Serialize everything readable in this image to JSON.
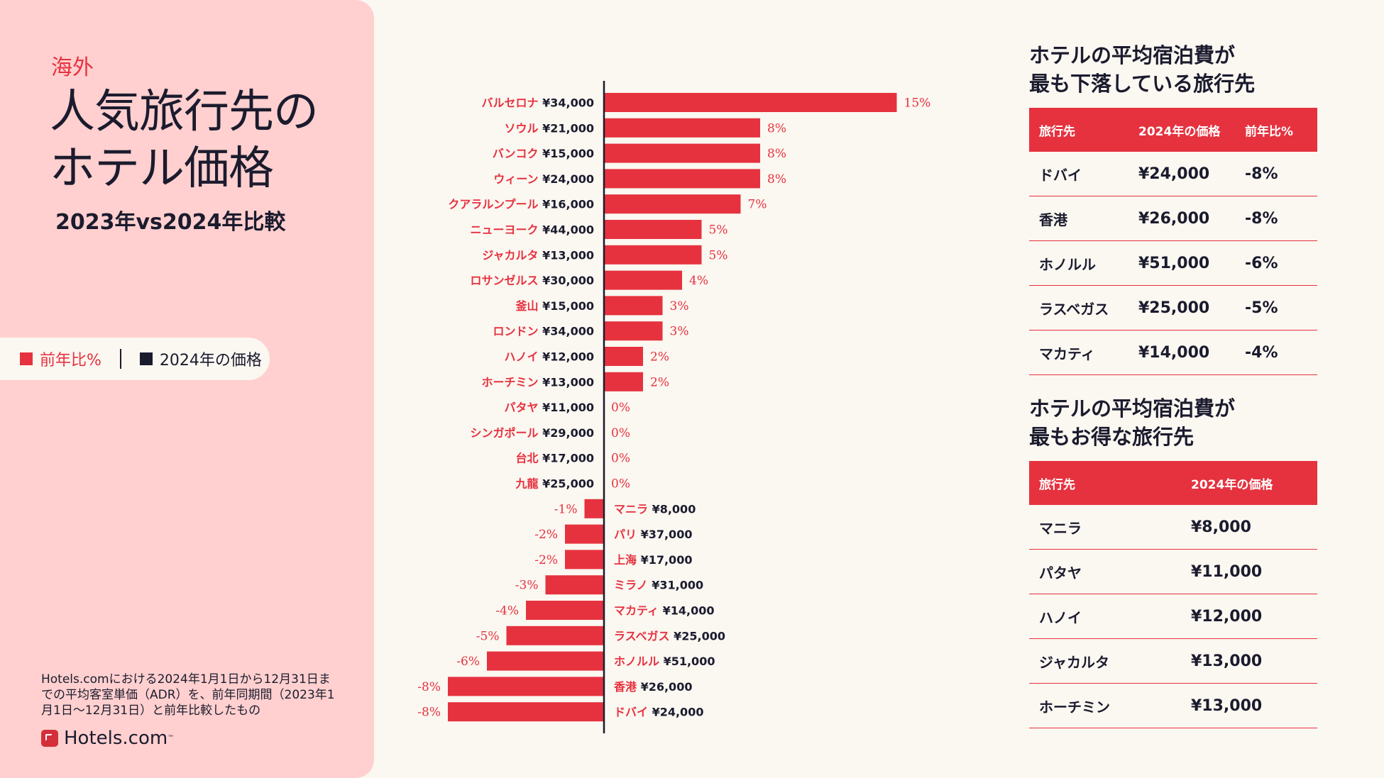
{
  "sidebar": {
    "kicker": "海外",
    "title_line1": "人気旅行先の",
    "title_line2": "ホテル価格",
    "subtitle": "2023年vs2024年比較",
    "legend": {
      "yoy": "前年比%",
      "price": "2024年の価格"
    },
    "note": "Hotels.comにおける2024年1月1日から12月31日までの平均客室単価（ADR）を、前年同期間（2023年1月1日～12月31日）と前年比較したもの",
    "brand": "Hotels.com",
    "brand_tm": "™"
  },
  "chart_data": {
    "type": "bar",
    "orientation": "horizontal",
    "colors": {
      "bar": "#e6323f",
      "label": "#e6323f",
      "price": "#1b1b2e",
      "axis": "#1b1b2e"
    },
    "items": [
      {
        "city": "バルセロナ",
        "price": "¥34,000",
        "change": 15,
        "label": "15%"
      },
      {
        "city": "ソウル",
        "price": "¥21,000",
        "change": 8,
        "label": "8%"
      },
      {
        "city": "バンコク",
        "price": "¥15,000",
        "change": 8,
        "label": "8%"
      },
      {
        "city": "ウィーン",
        "price": "¥24,000",
        "change": 8,
        "label": "8%"
      },
      {
        "city": "クアラルンプール",
        "price": "¥16,000",
        "change": 7,
        "label": "7%"
      },
      {
        "city": "ニューヨーク",
        "price": "¥44,000",
        "change": 5,
        "label": "5%"
      },
      {
        "city": "ジャカルタ",
        "price": "¥13,000",
        "change": 5,
        "label": "5%"
      },
      {
        "city": "ロサンゼルス",
        "price": "¥30,000",
        "change": 4,
        "label": "4%"
      },
      {
        "city": "釜山",
        "price": "¥15,000",
        "change": 3,
        "label": "3%"
      },
      {
        "city": "ロンドン",
        "price": "¥34,000",
        "change": 3,
        "label": "3%"
      },
      {
        "city": "ハノイ",
        "price": "¥12,000",
        "change": 2,
        "label": "2%"
      },
      {
        "city": "ホーチミン",
        "price": "¥13,000",
        "change": 2,
        "label": "2%"
      },
      {
        "city": "パタヤ",
        "price": "¥11,000",
        "change": 0,
        "label": "0%"
      },
      {
        "city": "シンガポール",
        "price": "¥29,000",
        "change": 0,
        "label": "0%"
      },
      {
        "city": "台北",
        "price": "¥17,000",
        "change": 0,
        "label": "0%"
      },
      {
        "city": "九龍",
        "price": "¥25,000",
        "change": 0,
        "label": "0%"
      },
      {
        "city": "マニラ",
        "price": "¥8,000",
        "change": -1,
        "label": "-1%"
      },
      {
        "city": "パリ",
        "price": "¥37,000",
        "change": -2,
        "label": "-2%"
      },
      {
        "city": "上海",
        "price": "¥17,000",
        "change": -2,
        "label": "-2%"
      },
      {
        "city": "ミラノ",
        "price": "¥31,000",
        "change": -3,
        "label": "-3%"
      },
      {
        "city": "マカティ",
        "price": "¥14,000",
        "change": -4,
        "label": "-4%"
      },
      {
        "city": "ラスベガス",
        "price": "¥25,000",
        "change": -5,
        "label": "-5%"
      },
      {
        "city": "ホノルル",
        "price": "¥51,000",
        "change": -6,
        "label": "-6%"
      },
      {
        "city": "香港",
        "price": "¥26,000",
        "change": -8,
        "label": "-8%"
      },
      {
        "city": "ドバイ",
        "price": "¥24,000",
        "change": -8,
        "label": "-8%"
      }
    ]
  },
  "table1": {
    "title_line1": "ホテルの平均宿泊費が",
    "title_line2": "最も下落している旅行先",
    "headers": [
      "旅行先",
      "2024年の価格",
      "前年比%"
    ],
    "rows": [
      [
        "ドバイ",
        "¥24,000",
        "-8%"
      ],
      [
        "香港",
        "¥26,000",
        "-8%"
      ],
      [
        "ホノルル",
        "¥51,000",
        "-6%"
      ],
      [
        "ラスベガス",
        "¥25,000",
        "-5%"
      ],
      [
        "マカティ",
        "¥14,000",
        "-4%"
      ]
    ]
  },
  "table2": {
    "title_line1": "ホテルの平均宿泊費が",
    "title_line2": "最もお得な旅行先",
    "headers": [
      "旅行先",
      "2024年の価格"
    ],
    "rows": [
      [
        "マニラ",
        "¥8,000"
      ],
      [
        "パタヤ",
        "¥11,000"
      ],
      [
        "ハノイ",
        "¥12,000"
      ],
      [
        "ジャカルタ",
        "¥13,000"
      ],
      [
        "ホーチミン",
        "¥13,000"
      ]
    ]
  }
}
